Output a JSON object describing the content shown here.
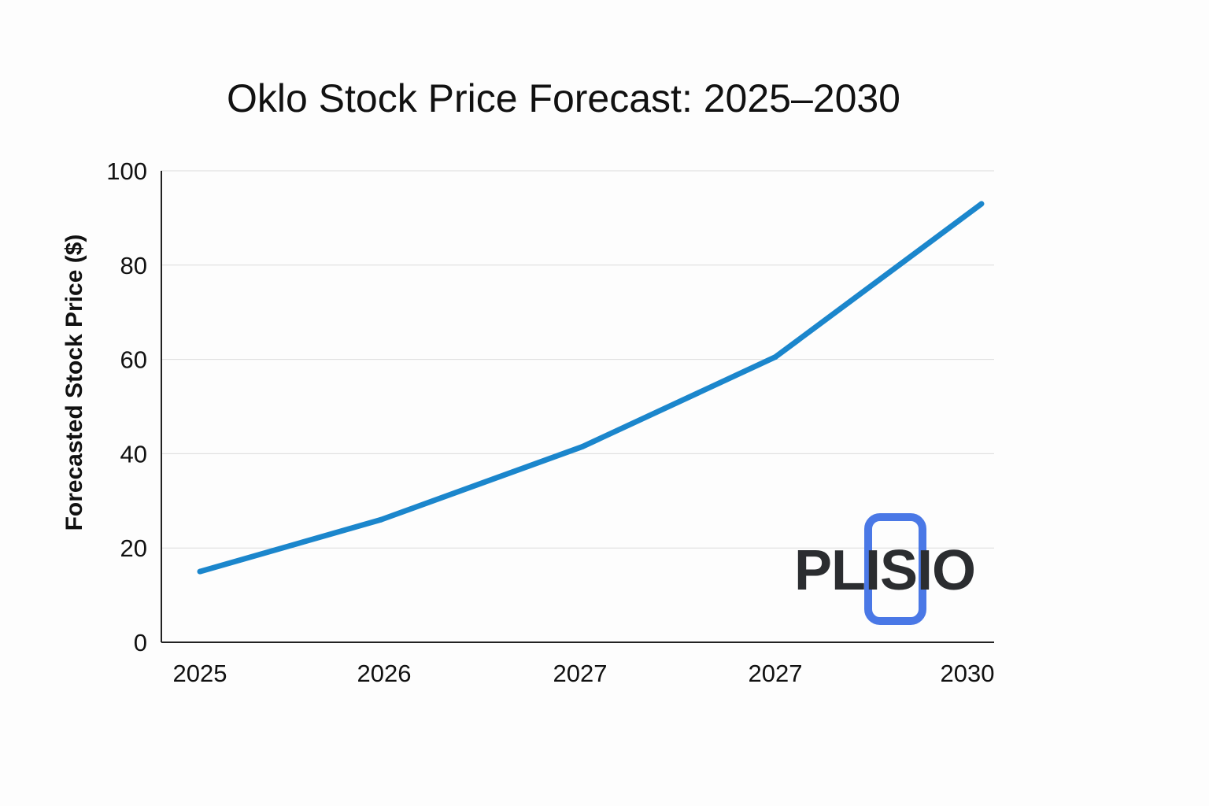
{
  "chart_data": {
    "type": "line",
    "title": "Oklo Stock Price Forecast: 2025–2030",
    "xlabel": "",
    "ylabel": "Forecasted Stock Price ($)",
    "categories": [
      "2025",
      "2026",
      "2027",
      "2027",
      "2030"
    ],
    "series": [
      {
        "name": "Forecasted Stock Price",
        "values": [
          15,
          26,
          41.5,
          60.5,
          93
        ]
      }
    ],
    "ylim": [
      0,
      100
    ],
    "yticks": [
      0,
      20,
      40,
      60,
      80,
      100
    ],
    "grid": true,
    "legend": "none"
  },
  "logo": {
    "text": "PLISIO",
    "text_color": "#2b2d30",
    "accent_color": "#4a78e6"
  },
  "colors": {
    "line": "#1b86cc",
    "axis": "#222222",
    "grid": "#dcdcdc"
  }
}
